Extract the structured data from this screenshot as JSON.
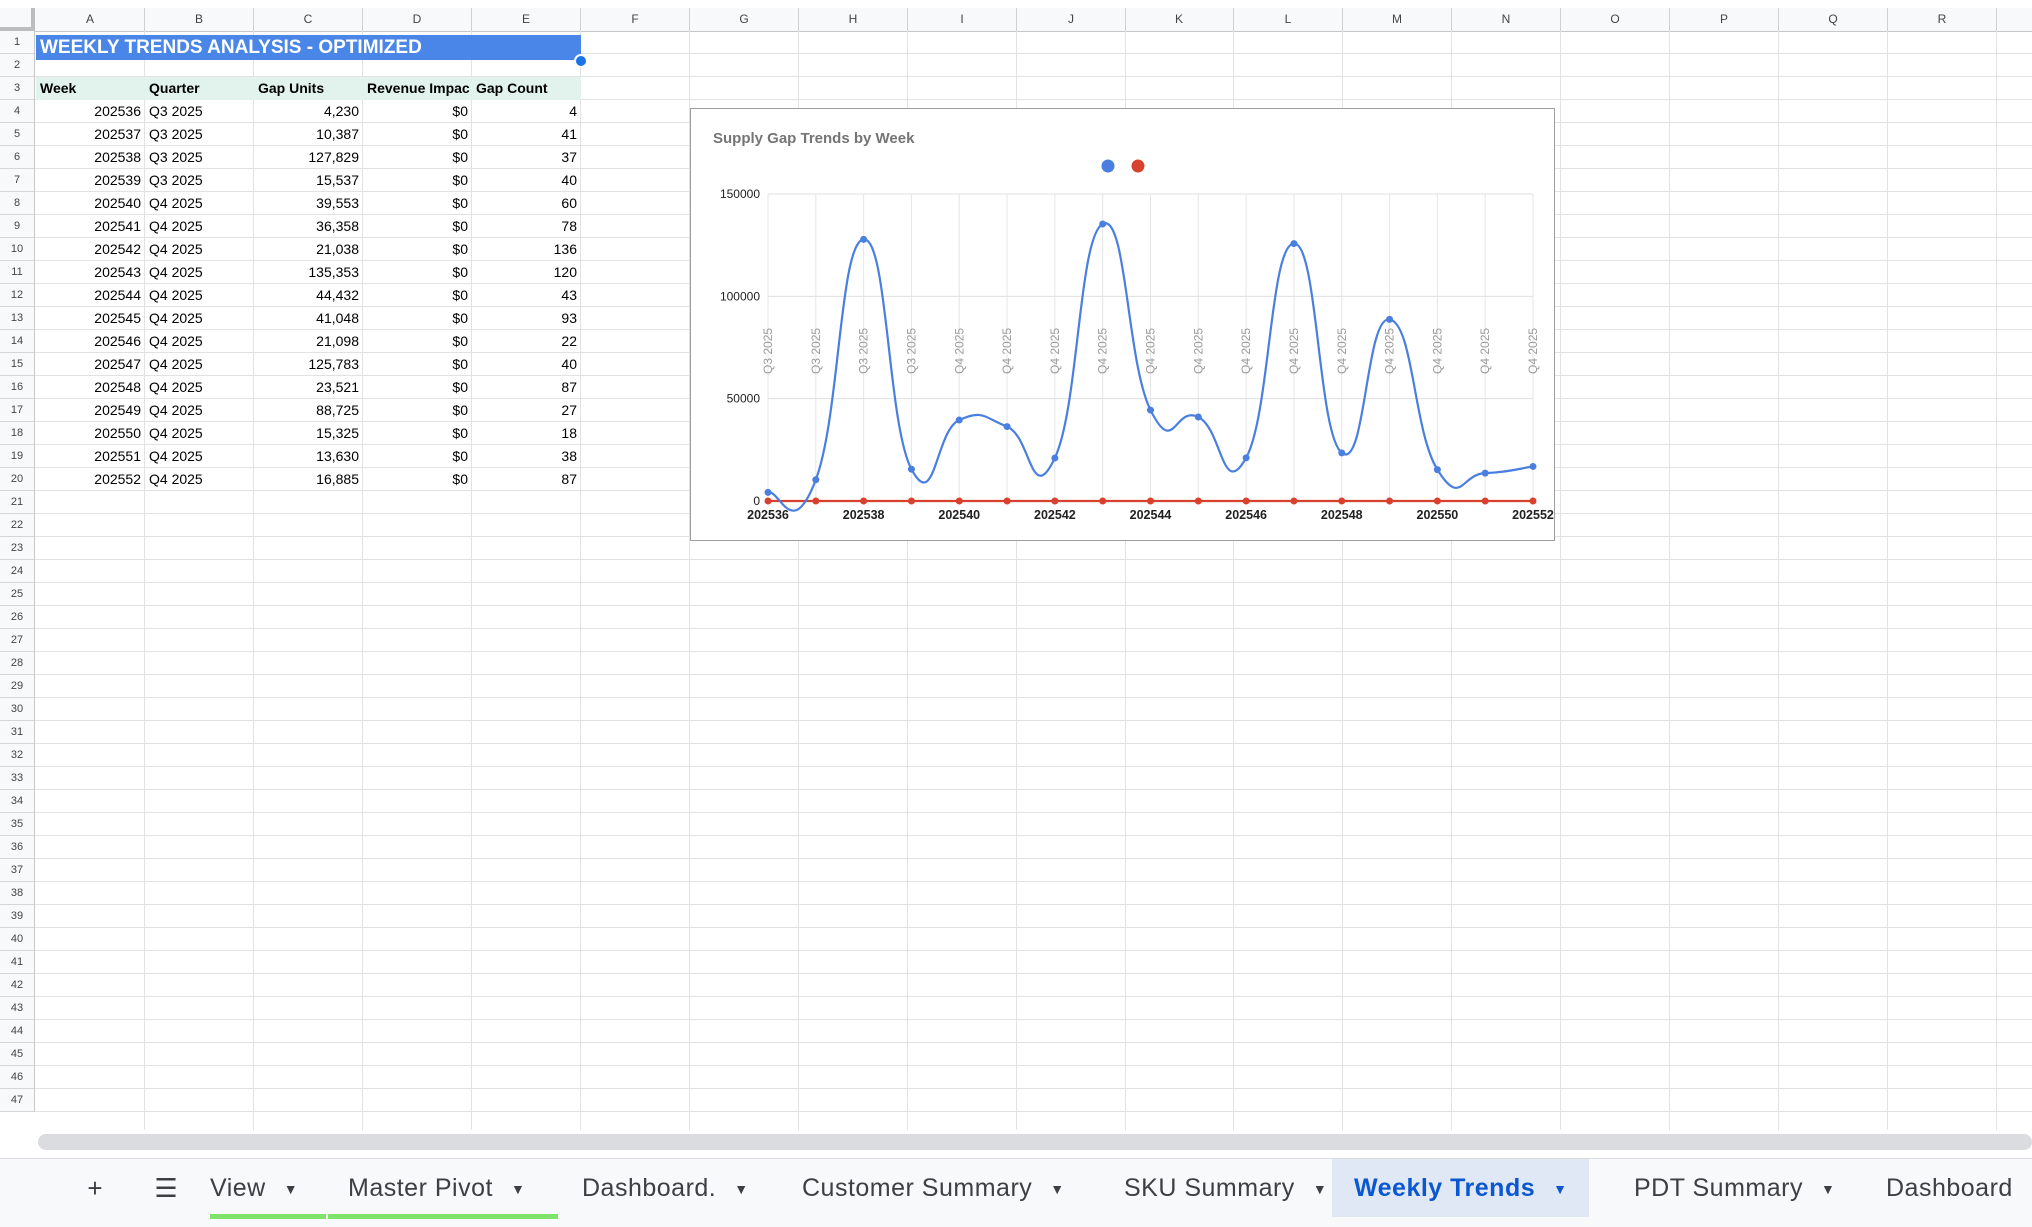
{
  "columns": [
    "A",
    "B",
    "C",
    "D",
    "E",
    "F",
    "G",
    "H",
    "I",
    "J",
    "K",
    "L",
    "M",
    "N",
    "O",
    "P",
    "Q",
    "R"
  ],
  "row_count": 47,
  "sheet": {
    "title": "WEEKLY TRENDS ANALYSIS - OPTIMIZED",
    "headers": [
      "Week",
      "Quarter",
      "Gap Units",
      "Revenue Impac",
      "Gap Count"
    ],
    "rows": [
      [
        "202536",
        "Q3 2025",
        "4,230",
        "$0",
        "4"
      ],
      [
        "202537",
        "Q3 2025",
        "10,387",
        "$0",
        "41"
      ],
      [
        "202538",
        "Q3 2025",
        "127,829",
        "$0",
        "37"
      ],
      [
        "202539",
        "Q3 2025",
        "15,537",
        "$0",
        "40"
      ],
      [
        "202540",
        "Q4 2025",
        "39,553",
        "$0",
        "60"
      ],
      [
        "202541",
        "Q4 2025",
        "36,358",
        "$0",
        "78"
      ],
      [
        "202542",
        "Q4 2025",
        "21,038",
        "$0",
        "136"
      ],
      [
        "202543",
        "Q4 2025",
        "135,353",
        "$0",
        "120"
      ],
      [
        "202544",
        "Q4 2025",
        "44,432",
        "$0",
        "43"
      ],
      [
        "202545",
        "Q4 2025",
        "41,048",
        "$0",
        "93"
      ],
      [
        "202546",
        "Q4 2025",
        "21,098",
        "$0",
        "22"
      ],
      [
        "202547",
        "Q4 2025",
        "125,783",
        "$0",
        "40"
      ],
      [
        "202548",
        "Q4 2025",
        "23,521",
        "$0",
        "87"
      ],
      [
        "202549",
        "Q4 2025",
        "88,725",
        "$0",
        "27"
      ],
      [
        "202550",
        "Q4 2025",
        "15,325",
        "$0",
        "18"
      ],
      [
        "202551",
        "Q4 2025",
        "13,630",
        "$0",
        "38"
      ],
      [
        "202552",
        "Q4 2025",
        "16,885",
        "$0",
        "87"
      ]
    ]
  },
  "chart_data": {
    "type": "line",
    "title": "Supply Gap Trends by Week",
    "x": [
      "202536",
      "202537",
      "202538",
      "202539",
      "202540",
      "202541",
      "202542",
      "202543",
      "202544",
      "202545",
      "202546",
      "202547",
      "202548",
      "202549",
      "202550",
      "202551",
      "202552"
    ],
    "x_tick_labels": [
      "202536",
      "202538",
      "202540",
      "202542",
      "202544",
      "202546",
      "202548",
      "202550",
      "202552"
    ],
    "point_labels": [
      "Q3 2025",
      "Q3 2025",
      "Q3 2025",
      "Q3 2025",
      "Q4 2025",
      "Q4 2025",
      "Q4 2025",
      "Q4 2025",
      "Q4 2025",
      "Q4 2025",
      "Q4 2025",
      "Q4 2025",
      "Q4 2025",
      "Q4 2025",
      "Q4 2025",
      "Q4 2025",
      "Q4 2025"
    ],
    "series": [
      {
        "values": [
          4230,
          10387,
          127829,
          15537,
          39553,
          36358,
          21038,
          135353,
          44432,
          41048,
          21098,
          125783,
          23521,
          88725,
          15325,
          13630,
          16885
        ],
        "color": "#4a7fe0"
      },
      {
        "values": [
          0,
          0,
          0,
          0,
          0,
          0,
          0,
          0,
          0,
          0,
          0,
          0,
          0,
          0,
          0,
          0,
          0
        ],
        "color": "#d9412f"
      }
    ],
    "y_ticks": [
      "150000",
      "100000",
      "50000",
      "0"
    ],
    "ylim": [
      0,
      150000
    ],
    "grid": true,
    "legend": "top"
  },
  "tabs": {
    "add_icon": "+",
    "menu_icon": "☰",
    "items": [
      {
        "label": "View",
        "active": false
      },
      {
        "label": "Master Pivot",
        "active": false
      },
      {
        "label": "Dashboard.",
        "active": false
      },
      {
        "label": "Customer Summary",
        "active": false
      },
      {
        "label": "SKU Summary",
        "active": false
      },
      {
        "label": "Weekly Trends",
        "active": true
      },
      {
        "label": "PDT Summary",
        "active": false
      },
      {
        "label": "Dashboard",
        "active": false
      }
    ]
  }
}
